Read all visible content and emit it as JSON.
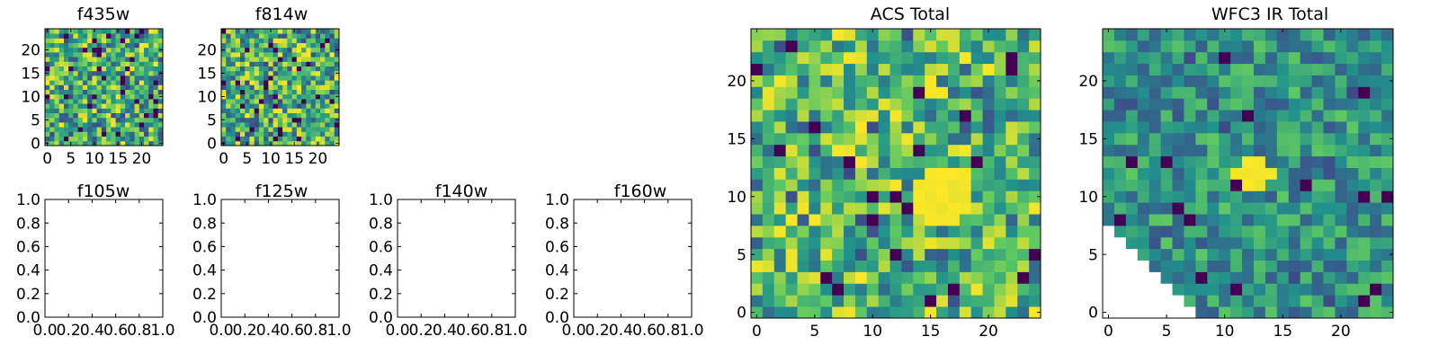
{
  "figure": {
    "colormap": [
      "#440154",
      "#3b528b",
      "#21918c",
      "#5ec962",
      "#fde725"
    ]
  },
  "chart_data": [
    {
      "id": "f435w",
      "type": "heatmap",
      "title": "f435w",
      "xlim": [
        -0.5,
        24.5
      ],
      "ylim": [
        -0.5,
        24.5
      ],
      "xticks": [
        0,
        5,
        10,
        15,
        20
      ],
      "yticks": [
        0,
        5,
        10,
        15,
        20
      ],
      "rows": 25,
      "cols": 25,
      "seed": 11,
      "dark": 0.05
    },
    {
      "id": "f814w",
      "type": "heatmap",
      "title": "f814w",
      "xlim": [
        -0.5,
        24.5
      ],
      "ylim": [
        -0.5,
        24.5
      ],
      "xticks": [
        0,
        5,
        10,
        15,
        20
      ],
      "yticks": [
        0,
        5,
        10,
        15,
        20
      ],
      "rows": 25,
      "cols": 25,
      "seed": 23,
      "dark": 0.05
    },
    {
      "id": "f105w",
      "type": "empty",
      "title": "f105w",
      "xlim": [
        0,
        1
      ],
      "ylim": [
        0,
        1
      ],
      "xticks": [
        "0.0",
        "0.2",
        "0.4",
        "0.6",
        "0.8",
        "1.0"
      ],
      "yticks": [
        "0.0",
        "0.2",
        "0.4",
        "0.6",
        "0.8",
        "1.0"
      ]
    },
    {
      "id": "f125w",
      "type": "empty",
      "title": "f125w",
      "xlim": [
        0,
        1
      ],
      "ylim": [
        0,
        1
      ],
      "xticks": [
        "0.0",
        "0.2",
        "0.4",
        "0.6",
        "0.8",
        "1.0"
      ],
      "yticks": [
        "0.0",
        "0.2",
        "0.4",
        "0.6",
        "0.8",
        "1.0"
      ]
    },
    {
      "id": "f140w",
      "type": "empty",
      "title": "f140w",
      "xlim": [
        0,
        1
      ],
      "ylim": [
        0,
        1
      ],
      "xticks": [
        "0.0",
        "0.2",
        "0.4",
        "0.6",
        "0.8",
        "1.0"
      ],
      "yticks": [
        "0.0",
        "0.2",
        "0.4",
        "0.6",
        "0.8",
        "1.0"
      ]
    },
    {
      "id": "f160w",
      "type": "empty",
      "title": "f160w",
      "xlim": [
        0,
        1
      ],
      "ylim": [
        0,
        1
      ],
      "xticks": [
        "0.0",
        "0.2",
        "0.4",
        "0.6",
        "0.8",
        "1.0"
      ],
      "yticks": [
        "0.0",
        "0.2",
        "0.4",
        "0.6",
        "0.8",
        "1.0"
      ]
    },
    {
      "id": "acs_total",
      "type": "heatmap",
      "title": "ACS Total",
      "xlim": [
        -0.5,
        24.5
      ],
      "ylim": [
        -0.5,
        24.5
      ],
      "xticks": [
        0,
        5,
        10,
        15,
        20
      ],
      "yticks": [
        0,
        5,
        10,
        15,
        20
      ],
      "rows": 25,
      "cols": 25,
      "seed": 37,
      "dark": 0.025,
      "bright_blob": {
        "x": 16,
        "y": 10,
        "r": 2.5
      }
    },
    {
      "id": "wfc3_ir_total",
      "type": "heatmap",
      "title": "WFC3 IR Total",
      "xlim": [
        -0.5,
        24.5
      ],
      "ylim": [
        -0.5,
        24.5
      ],
      "xticks": [
        0,
        5,
        10,
        15,
        20
      ],
      "yticks": [
        0,
        5,
        10,
        15,
        20
      ],
      "rows": 25,
      "cols": 25,
      "seed": 53,
      "dark": 0.025,
      "bright_blob": {
        "x": 12.5,
        "y": 12,
        "r": 1.6
      },
      "masked": "lower-left triangle: cells with x < 8 - y (rows 0–8) are empty (NaN)"
    }
  ]
}
